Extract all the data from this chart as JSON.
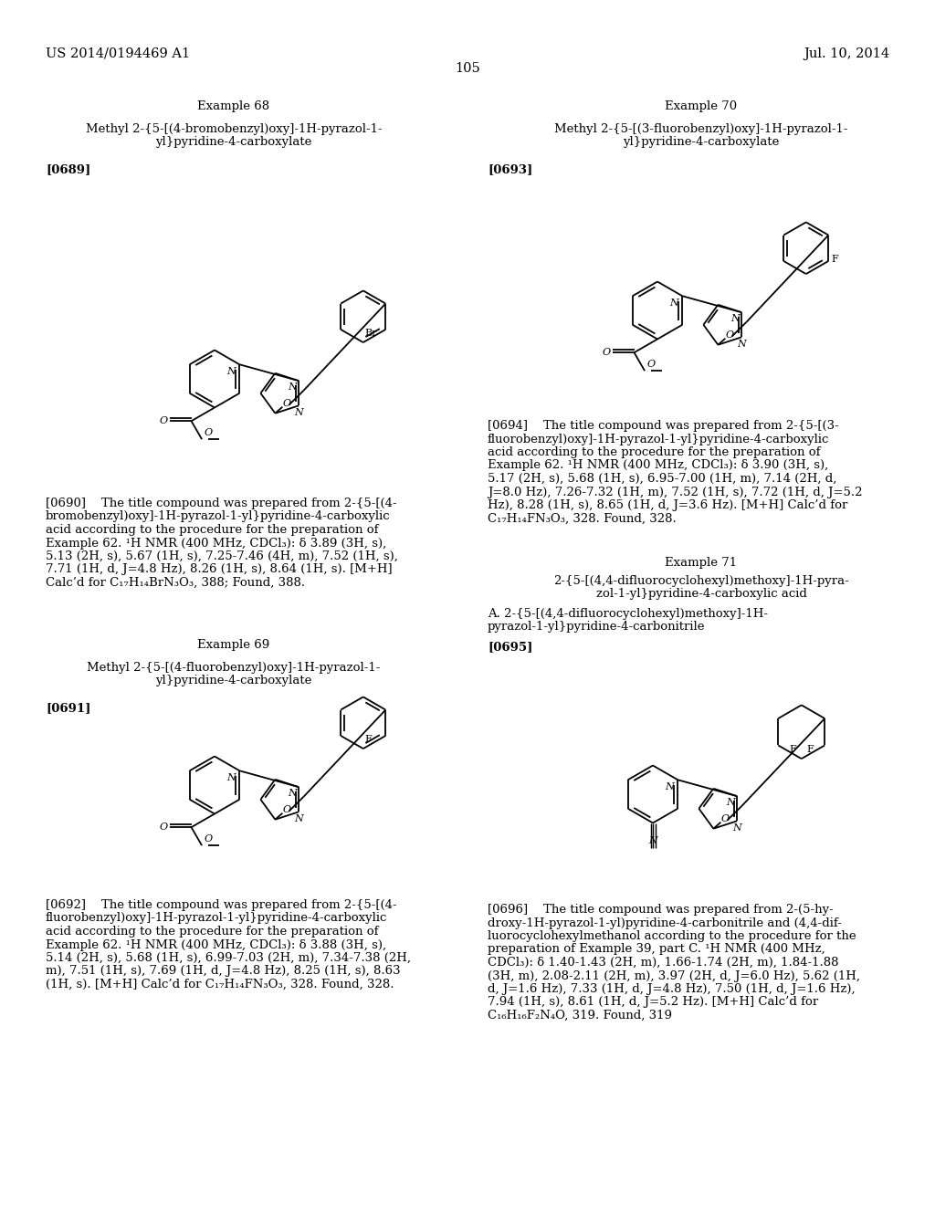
{
  "page_header_left": "US 2014/0194469 A1",
  "page_header_right": "Jul. 10, 2014",
  "page_number": "105",
  "background_color": "#ffffff",
  "text_color": "#000000",
  "example68_title": "Example 68",
  "example68_compound_line1": "Methyl 2-{5-[(4-bromobenzyl)oxy]-1H-pyrazol-1-",
  "example68_compound_line2": "yl}pyridine-4-carboxylate",
  "example68_tag": "[0689]",
  "example68_body": "[0690]    The title compound was prepared from 2-{5-[(4-\nbromobenzyl)oxy]-1H-pyrazol-1-yl}pyridine-4-carboxylic\nacid according to the procedure for the preparation of\nExample 62. ¹H NMR (400 MHz, CDCl₃): δ 3.89 (3H, s),\n5.13 (2H, s), 5.67 (1H, s), 7.25-7.46 (4H, m), 7.52 (1H, s),\n7.71 (1H, d, J=4.8 Hz), 8.26 (1H, s), 8.64 (1H, s). [M+H]\nCalc’d for C₁₇H₁₄BrN₃O₃, 388; Found, 388.",
  "example69_title": "Example 69",
  "example69_compound_line1": "Methyl 2-{5-[(4-fluorobenzyl)oxy]-1H-pyrazol-1-",
  "example69_compound_line2": "yl}pyridine-4-carboxylate",
  "example69_tag": "[0691]",
  "example69_body": "[0692]    The title compound was prepared from 2-{5-[(4-\nfluorobenzyl)oxy]-1H-pyrazol-1-yl}pyridine-4-carboxylic\nacid according to the procedure for the preparation of\nExample 62. ¹H NMR (400 MHz, CDCl₃): δ 3.88 (3H, s),\n5.14 (2H, s), 5.68 (1H, s), 6.99-7.03 (2H, m), 7.34-7.38 (2H,\nm), 7.51 (1H, s), 7.69 (1H, d, J=4.8 Hz), 8.25 (1H, s), 8.63\n(1H, s). [M+H] Calc’d for C₁₇H₁₄FN₃O₃, 328. Found, 328.",
  "example70_title": "Example 70",
  "example70_compound_line1": "Methyl 2-{5-[(3-fluorobenzyl)oxy]-1H-pyrazol-1-",
  "example70_compound_line2": "yl}pyridine-4-carboxylate",
  "example70_tag": "[0693]",
  "example70_body": "[0694]    The title compound was prepared from 2-{5-[(3-\nfluorobenzyl)oxy]-1H-pyrazol-1-yl}pyridine-4-carboxylic\nacid according to the procedure for the preparation of\nExample 62. ¹H NMR (400 MHz, CDCl₃): δ 3.90 (3H, s),\n5.17 (2H, s), 5.68 (1H, s), 6.95-7.00 (1H, m), 7.14 (2H, d,\nJ=8.0 Hz), 7.26-7.32 (1H, m), 7.52 (1H, s), 7.72 (1H, d, J=5.2\nHz), 8.28 (1H, s), 8.65 (1H, d, J=3.6 Hz). [M+H] Calc’d for\nC₁₇H₁₄FN₃O₃, 328. Found, 328.",
  "example71_title": "Example 71",
  "example71_compound_line1": "2-{5-[(4,4-difluorocyclohexyl)methoxy]-1H-pyra-",
  "example71_compound_line2": "zol-1-yl}pyridine-4-carboxylic acid",
  "example71_sub_line1": "A. 2-{5-[(4,4-difluorocyclohexyl)methoxy]-1H-",
  "example71_sub_line2": "pyrazol-1-yl}pyridine-4-carbonitrile",
  "example71_tag": "[0695]",
  "example71_body": "[0696]    The title compound was prepared from 2-(5-hy-\ndroxy-1H-pyrazol-1-yl)pyridine-4-carbonitrile and (4,4-dif-\nluorocyclohexylmethanol according to the procedure for the\npreparation of Example 39, part C. ¹H NMR (400 MHz,\nCDCl₃): δ 1.40-1.43 (2H, m), 1.66-1.74 (2H, m), 1.84-1.88\n(3H, m), 2.08-2.11 (2H, m), 3.97 (2H, d, J=6.0 Hz), 5.62 (1H,\nd, J=1.6 Hz), 7.33 (1H, d, J=4.8 Hz), 7.50 (1H, d, J=1.6 Hz),\n7.94 (1H, s), 8.61 (1H, d, J=5.2 Hz). [M+H] Calc’d for\nC₁₆H₁₆F₂N₄O, 319. Found, 319"
}
